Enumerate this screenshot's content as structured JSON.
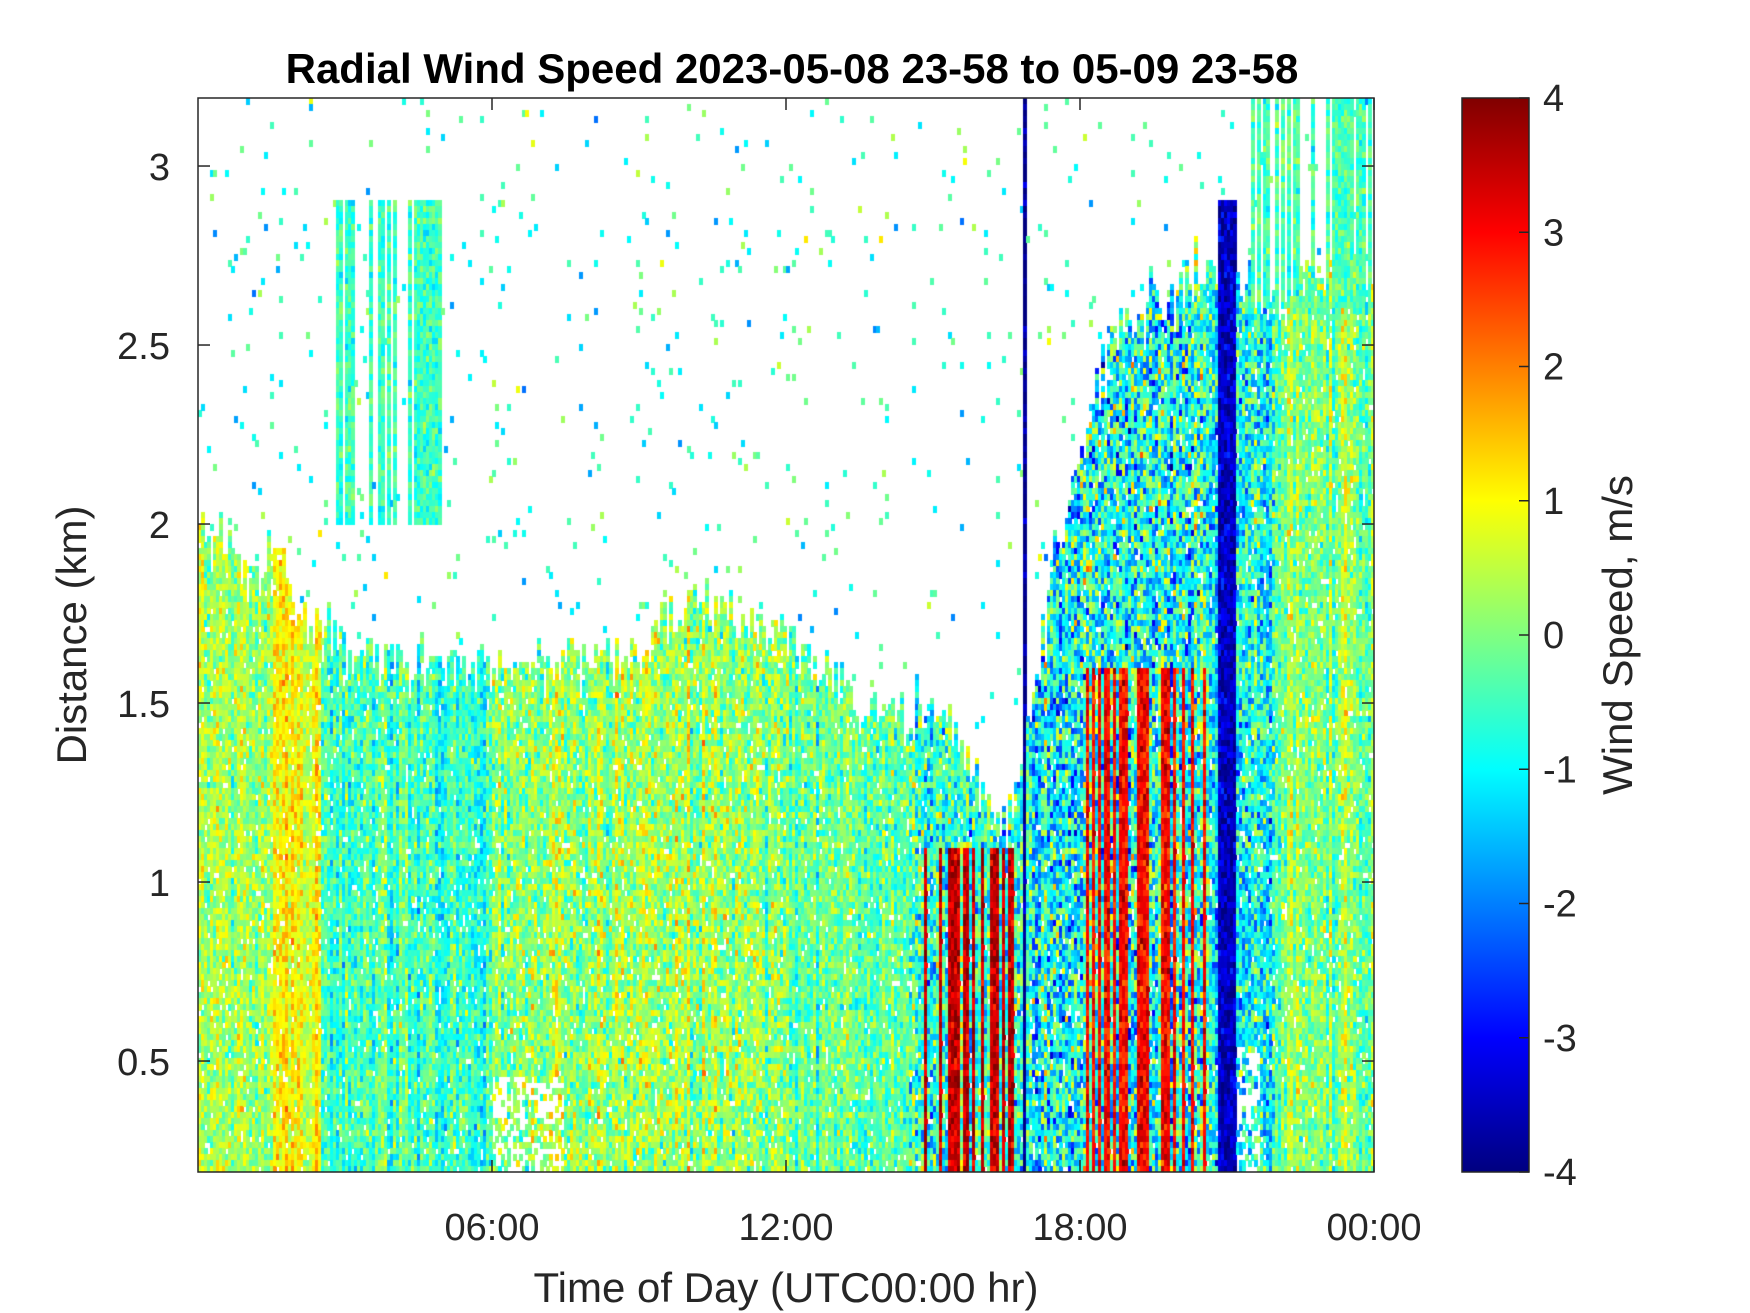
{
  "chart_data": {
    "type": "heatmap",
    "title": "Radial Wind Speed 2023-05-08 23-58 to 05-09 23-58",
    "xlabel": "Time of Day (UTC00:00 hr)",
    "ylabel": "Distance (km)",
    "colorbar_label": "Wind Speed, m/s",
    "colormap": "jet",
    "x_range_hours": [
      0,
      24
    ],
    "x_ticks": [
      {
        "value": 6,
        "label": "06:00"
      },
      {
        "value": 12,
        "label": "12:00"
      },
      {
        "value": 18,
        "label": "18:00"
      },
      {
        "value": 24,
        "label": "00:00"
      }
    ],
    "ylim": [
      0.19,
      3.19
    ],
    "y_ticks": [
      {
        "value": 0.5,
        "label": "0.5"
      },
      {
        "value": 1,
        "label": "1"
      },
      {
        "value": 1.5,
        "label": "1.5"
      },
      {
        "value": 2,
        "label": "2"
      },
      {
        "value": 2.5,
        "label": "2.5"
      },
      {
        "value": 3,
        "label": "3"
      }
    ],
    "clim": [
      -4,
      4
    ],
    "c_ticks": [
      {
        "value": -4,
        "label": "-4"
      },
      {
        "value": -3,
        "label": "-3"
      },
      {
        "value": -2,
        "label": "-2"
      },
      {
        "value": -1,
        "label": "-1"
      },
      {
        "value": 0,
        "label": "0"
      },
      {
        "value": 1,
        "label": "1"
      },
      {
        "value": 2,
        "label": "2"
      },
      {
        "value": 3,
        "label": "3"
      },
      {
        "value": 4,
        "label": "4"
      }
    ],
    "data_top_km": [
      [
        0.0,
        2.0
      ],
      [
        1.3,
        1.85
      ],
      [
        1.6,
        2.0
      ],
      [
        2.0,
        1.8
      ],
      [
        3.0,
        1.65
      ],
      [
        6.0,
        1.6
      ],
      [
        9.0,
        1.65
      ],
      [
        10.0,
        1.8
      ],
      [
        12.0,
        1.7
      ],
      [
        13.5,
        1.5
      ],
      [
        15.5,
        1.45
      ],
      [
        16.0,
        1.25
      ],
      [
        16.5,
        1.1
      ],
      [
        17.0,
        1.5
      ],
      [
        17.5,
        1.9
      ],
      [
        18.5,
        2.45
      ],
      [
        19.0,
        2.6
      ],
      [
        20.0,
        2.65
      ],
      [
        21.0,
        2.7
      ],
      [
        22.0,
        2.65
      ],
      [
        23.0,
        2.7
      ],
      [
        24.0,
        2.7
      ]
    ],
    "regions": [
      {
        "t": [
          0.0,
          1.5
        ],
        "mean": 0.3,
        "spread": 0.6
      },
      {
        "t": [
          1.5,
          2.5
        ],
        "mean": 0.9,
        "spread": 0.5
      },
      {
        "t": [
          2.5,
          4.5
        ],
        "mean": -0.5,
        "spread": 0.6
      },
      {
        "t": [
          4.5,
          6.0
        ],
        "mean": -0.6,
        "spread": 0.6
      },
      {
        "t": [
          6.0,
          12.0
        ],
        "mean": 0.2,
        "spread": 0.7
      },
      {
        "t": [
          12.0,
          14.5
        ],
        "mean": -0.2,
        "spread": 0.6
      },
      {
        "t": [
          14.5,
          17.0
        ],
        "mean": -0.6,
        "spread": 1.0
      },
      {
        "t": [
          17.0,
          20.5
        ],
        "mean": -0.8,
        "spread": 1.3
      },
      {
        "t": [
          20.5,
          22.0
        ],
        "mean": -0.9,
        "spread": 1.0
      },
      {
        "t": [
          22.0,
          24.0
        ],
        "mean": 0.0,
        "spread": 0.6
      }
    ],
    "features": [
      {
        "kind": "strong-positive",
        "t": [
          14.8,
          16.9
        ],
        "d": [
          0.19,
          1.1
        ],
        "value": 3.5
      },
      {
        "kind": "strong-positive",
        "t": [
          18.0,
          20.6
        ],
        "d": [
          0.19,
          1.6
        ],
        "value": 3.0
      },
      {
        "kind": "strong-negative",
        "t": [
          16.8,
          17.3
        ],
        "d": [
          0.19,
          3.19
        ],
        "value": -4.0
      },
      {
        "kind": "strong-negative",
        "t": [
          20.8,
          21.2
        ],
        "d": [
          0.19,
          2.9
        ],
        "value": -3.5
      },
      {
        "kind": "clear-air-plume",
        "t": [
          2.8,
          5.0
        ],
        "d": [
          2.0,
          2.9
        ],
        "value": -0.5
      },
      {
        "kind": "clear-air-plume",
        "t": [
          21.5,
          24.0
        ],
        "d": [
          2.6,
          3.19
        ],
        "value": -0.4
      }
    ]
  }
}
